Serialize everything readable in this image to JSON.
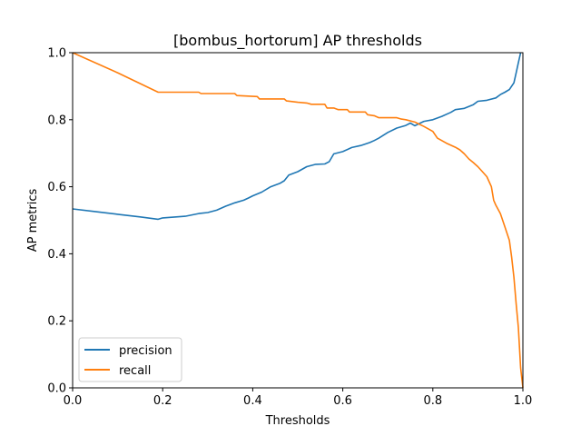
{
  "chart_data": {
    "type": "line",
    "title": "[bombus_hortorum] AP thresholds",
    "xlabel": "Thresholds",
    "ylabel": "AP metrics",
    "xlim": [
      0,
      1
    ],
    "ylim": [
      0,
      1
    ],
    "xticks": [
      "0.0",
      "0.2",
      "0.4",
      "0.6",
      "0.8",
      "1.0"
    ],
    "yticks": [
      "0.0",
      "0.2",
      "0.4",
      "0.6",
      "0.8",
      "1.0"
    ],
    "grid": false,
    "legend_position": "lower-left",
    "series": [
      {
        "name": "precision",
        "color": "#1f77b4",
        "points": [
          [
            0.0,
            0.534
          ],
          [
            0.05,
            0.526
          ],
          [
            0.1,
            0.518
          ],
          [
            0.15,
            0.51
          ],
          [
            0.19,
            0.503
          ],
          [
            0.2,
            0.507
          ],
          [
            0.25,
            0.512
          ],
          [
            0.28,
            0.52
          ],
          [
            0.3,
            0.523
          ],
          [
            0.32,
            0.53
          ],
          [
            0.34,
            0.542
          ],
          [
            0.36,
            0.552
          ],
          [
            0.38,
            0.56
          ],
          [
            0.39,
            0.566
          ],
          [
            0.4,
            0.573
          ],
          [
            0.42,
            0.584
          ],
          [
            0.44,
            0.6
          ],
          [
            0.46,
            0.61
          ],
          [
            0.47,
            0.618
          ],
          [
            0.48,
            0.635
          ],
          [
            0.5,
            0.645
          ],
          [
            0.52,
            0.66
          ],
          [
            0.54,
            0.667
          ],
          [
            0.56,
            0.668
          ],
          [
            0.57,
            0.675
          ],
          [
            0.58,
            0.698
          ],
          [
            0.6,
            0.705
          ],
          [
            0.62,
            0.717
          ],
          [
            0.64,
            0.723
          ],
          [
            0.66,
            0.732
          ],
          [
            0.67,
            0.738
          ],
          [
            0.68,
            0.745
          ],
          [
            0.7,
            0.762
          ],
          [
            0.72,
            0.775
          ],
          [
            0.74,
            0.783
          ],
          [
            0.75,
            0.79
          ],
          [
            0.76,
            0.782
          ],
          [
            0.78,
            0.795
          ],
          [
            0.8,
            0.8
          ],
          [
            0.82,
            0.81
          ],
          [
            0.84,
            0.822
          ],
          [
            0.85,
            0.83
          ],
          [
            0.87,
            0.834
          ],
          [
            0.89,
            0.845
          ],
          [
            0.9,
            0.855
          ],
          [
            0.92,
            0.858
          ],
          [
            0.94,
            0.865
          ],
          [
            0.95,
            0.875
          ],
          [
            0.96,
            0.882
          ],
          [
            0.97,
            0.89
          ],
          [
            0.98,
            0.91
          ],
          [
            0.985,
            0.94
          ],
          [
            0.99,
            0.97
          ],
          [
            0.995,
            1.0
          ]
        ]
      },
      {
        "name": "recall",
        "color": "#ff7f0e",
        "points": [
          [
            0.0,
            1.0
          ],
          [
            0.1,
            0.94
          ],
          [
            0.19,
            0.882
          ],
          [
            0.28,
            0.882
          ],
          [
            0.285,
            0.878
          ],
          [
            0.36,
            0.878
          ],
          [
            0.365,
            0.872
          ],
          [
            0.41,
            0.869
          ],
          [
            0.415,
            0.862
          ],
          [
            0.47,
            0.862
          ],
          [
            0.475,
            0.856
          ],
          [
            0.5,
            0.852
          ],
          [
            0.52,
            0.85
          ],
          [
            0.53,
            0.846
          ],
          [
            0.56,
            0.846
          ],
          [
            0.565,
            0.835
          ],
          [
            0.58,
            0.835
          ],
          [
            0.59,
            0.83
          ],
          [
            0.61,
            0.83
          ],
          [
            0.615,
            0.823
          ],
          [
            0.65,
            0.823
          ],
          [
            0.655,
            0.815
          ],
          [
            0.67,
            0.812
          ],
          [
            0.68,
            0.806
          ],
          [
            0.72,
            0.806
          ],
          [
            0.73,
            0.802
          ],
          [
            0.74,
            0.8
          ],
          [
            0.76,
            0.793
          ],
          [
            0.78,
            0.78
          ],
          [
            0.8,
            0.765
          ],
          [
            0.81,
            0.745
          ],
          [
            0.83,
            0.73
          ],
          [
            0.85,
            0.718
          ],
          [
            0.86,
            0.71
          ],
          [
            0.87,
            0.698
          ],
          [
            0.88,
            0.683
          ],
          [
            0.89,
            0.672
          ],
          [
            0.9,
            0.66
          ],
          [
            0.91,
            0.645
          ],
          [
            0.92,
            0.63
          ],
          [
            0.93,
            0.6
          ],
          [
            0.935,
            0.56
          ],
          [
            0.94,
            0.545
          ],
          [
            0.95,
            0.52
          ],
          [
            0.96,
            0.48
          ],
          [
            0.97,
            0.44
          ],
          [
            0.975,
            0.39
          ],
          [
            0.98,
            0.33
          ],
          [
            0.985,
            0.25
          ],
          [
            0.99,
            0.18
          ],
          [
            0.995,
            0.06
          ],
          [
            1.0,
            0.0
          ]
        ]
      }
    ]
  }
}
